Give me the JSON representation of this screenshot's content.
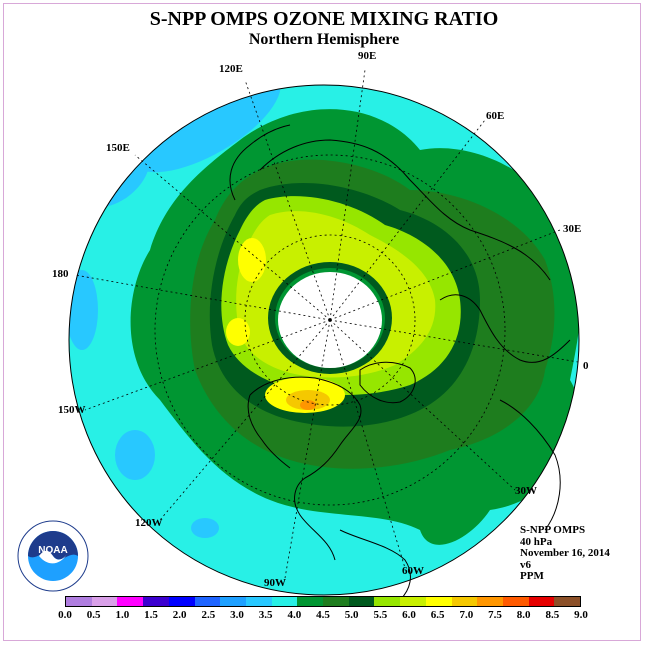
{
  "header": {
    "title": "S-NPP OMPS OZONE MIXING RATIO",
    "subtitle": "Northern Hemisphere"
  },
  "longitude_labels": [
    "90E",
    "60E",
    "30E",
    "0",
    "30W",
    "60W",
    "90W",
    "120W",
    "150W",
    "180",
    "150E",
    "120E"
  ],
  "info": {
    "instrument": "S-NPP OMPS",
    "level": "40 hPa",
    "date": "November 16, 2014",
    "version": "v6",
    "units": "PPM"
  },
  "colorbar": {
    "ticks": [
      "0.0",
      "0.5",
      "1.0",
      "1.5",
      "2.0",
      "2.5",
      "3.0",
      "3.5",
      "4.0",
      "4.5",
      "5.0",
      "5.5",
      "6.0",
      "6.5",
      "7.0",
      "7.5",
      "8.0",
      "8.5",
      "9.0"
    ],
    "colors": [
      "#b07ee0",
      "#d9a0e8",
      "#ff00ff",
      "#3c00d0",
      "#0000ff",
      "#1e64ff",
      "#1ea0ff",
      "#28c8ff",
      "#28f0e6",
      "#009632",
      "#1e7d1e",
      "#005a1e",
      "#96e600",
      "#c8f000",
      "#ffff00",
      "#f5c800",
      "#ff9600",
      "#ff5a00",
      "#e60000",
      "#8c5028"
    ]
  },
  "logo": {
    "text": "NOAA"
  },
  "map_colors": {
    "outer": "#28f0e6",
    "band45": "#009632",
    "band5": "#1e7d1e",
    "band55": "#005a1e",
    "band6": "#96e600",
    "band65": "#c8f000",
    "band7": "#ffff00",
    "band75": "#f5c800",
    "band8": "#ff9600",
    "blue35": "#28c8ff",
    "blue3": "#1ea0ff",
    "polar": "#ffffff"
  }
}
